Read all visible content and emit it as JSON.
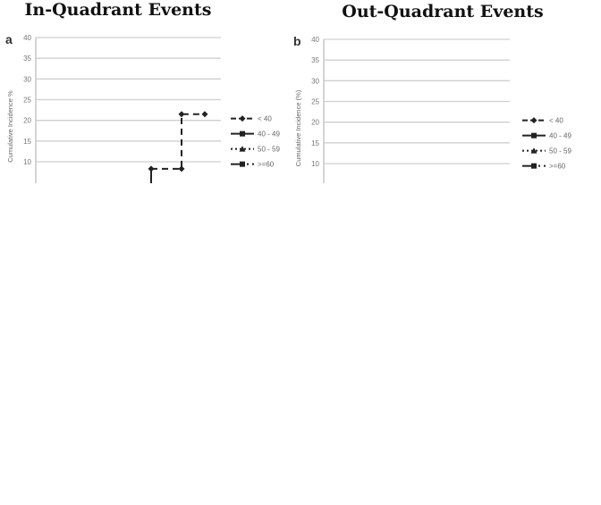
{
  "chart_data": [
    {
      "type": "line",
      "panel": "a",
      "title": "In-Quadrant Events",
      "ylabel": "Cumulative Incidence %",
      "ylim": [
        10,
        40
      ],
      "yticks": [
        "40",
        "35",
        "30",
        "25",
        "20",
        "15",
        "10"
      ],
      "grid": true,
      "legend_placement": "right",
      "legend": [
        "< 40",
        "40 - 49",
        "50 - 59",
        ">=60"
      ],
      "series": [
        {
          "name": "< 40",
          "style": "dashed",
          "marker": "diamond",
          "points": [
            [
              1,
              8.3
            ],
            [
              2,
              8.3
            ],
            [
              2,
              21.5
            ],
            [
              3,
              21.5
            ]
          ]
        }
      ]
    },
    {
      "type": "line",
      "panel": "b",
      "title": "Out-Quadrant Events",
      "ylabel": "Cumulative Incidence (%)",
      "ylim": [
        10,
        40
      ],
      "yticks": [
        "40",
        "35",
        "30",
        "25",
        "20",
        "15",
        "10"
      ],
      "grid": true,
      "legend_placement": "right",
      "legend": [
        "< 40",
        "40 - 49",
        "50 - 59",
        ">=60"
      ],
      "series": []
    }
  ]
}
